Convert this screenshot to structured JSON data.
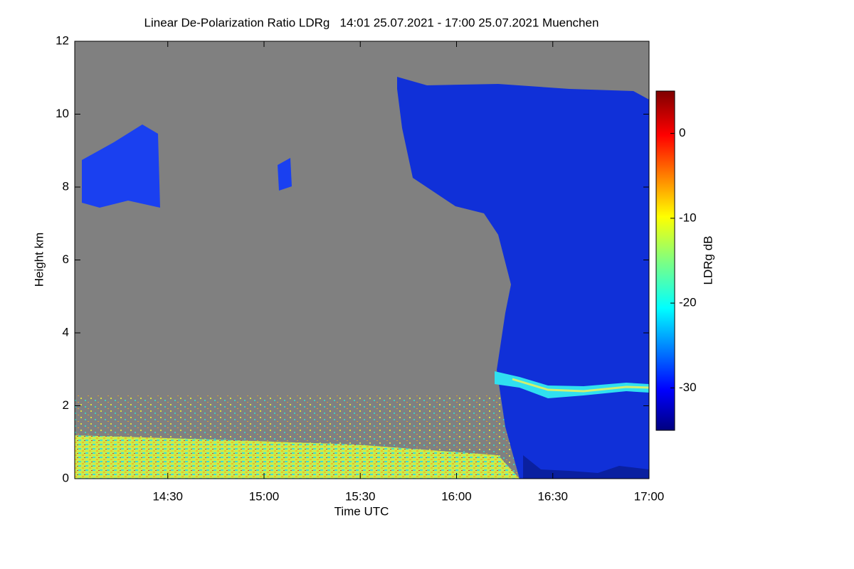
{
  "chart_data": {
    "type": "heatmap",
    "title": "Linear De-Polarization Ratio LDRg   14:01 25.07.2021 - 17:00 25.07.2021 Muenchen",
    "xlabel": "Time UTC",
    "ylabel": "Height km",
    "xlim": [
      841,
      1020
    ],
    "xticks": [
      {
        "value": 870,
        "label": "14:30"
      },
      {
        "value": 900,
        "label": "15:00"
      },
      {
        "value": 930,
        "label": "15:30"
      },
      {
        "value": 960,
        "label": "16:00"
      },
      {
        "value": 990,
        "label": "16:30"
      },
      {
        "value": 1020,
        "label": "17:00"
      }
    ],
    "ylim": [
      0,
      12
    ],
    "yticks": [
      0,
      2,
      4,
      6,
      8,
      10,
      12
    ],
    "colorbar": {
      "label": "LDRg dB",
      "lim": [
        -35,
        5
      ],
      "ticks": [
        0,
        -10,
        -20,
        -30
      ]
    }
  }
}
